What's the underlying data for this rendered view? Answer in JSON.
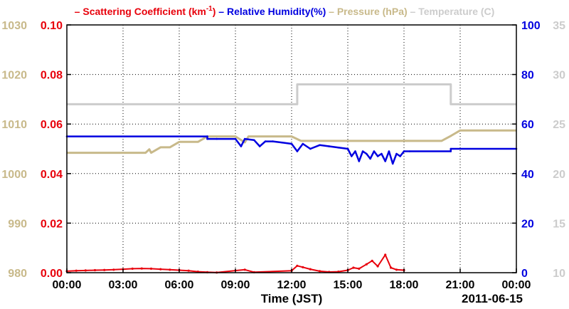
{
  "chart_data": {
    "type": "line",
    "legend_position": "top",
    "date_label": "2011-06-15",
    "xlabel": "Time (JST)",
    "x_ticks": [
      "00:00",
      "03:00",
      "06:00",
      "09:00",
      "12:00",
      "15:00",
      "18:00",
      "21:00",
      "00:00"
    ],
    "x_range": [
      0,
      24
    ],
    "grid": true,
    "colors": {
      "scattering": "#e8000b",
      "humidity": "#0000e0",
      "pressure": "#c8b98a",
      "temperature": "#cccccc"
    },
    "axes": {
      "pressure": {
        "range": [
          980,
          1030
        ],
        "ticks": [
          "980",
          "990",
          "1000",
          "1010",
          "1020",
          "1030"
        ],
        "side": "left-outer"
      },
      "scattering": {
        "range": [
          0,
          0.1
        ],
        "ticks": [
          "0.00",
          "0.02",
          "0.04",
          "0.06",
          "0.08",
          "0.10"
        ],
        "side": "left-inner"
      },
      "humidity": {
        "range": [
          0,
          100
        ],
        "ticks": [
          "0",
          "20",
          "40",
          "60",
          "80",
          "100"
        ],
        "side": "right-inner"
      },
      "temperature": {
        "range": [
          10,
          35
        ],
        "ticks": [
          "10",
          "15",
          "20",
          "25",
          "30",
          "35"
        ],
        "side": "right-outer"
      }
    },
    "series": [
      {
        "name": "Scattering Coefficient (km-1)",
        "legend_main": "Scattering Coefficient (km",
        "legend_sup": "-1",
        "legend_tail": ")",
        "axis": "scattering",
        "x": [
          0,
          0.5,
          1,
          1.5,
          2,
          2.5,
          3,
          3.5,
          4,
          4.5,
          5,
          5.5,
          6,
          6.5,
          7,
          7.5,
          8,
          9.5,
          10,
          12,
          12.3,
          12.6,
          13,
          13.5,
          14,
          14.5,
          15,
          15.3,
          15.6,
          16,
          16.3,
          16.6,
          17,
          17.3,
          17.6,
          18
        ],
        "y": [
          0.0006,
          0.0008,
          0.0009,
          0.001,
          0.0011,
          0.0012,
          0.0014,
          0.0016,
          0.0017,
          0.0016,
          0.0014,
          0.0012,
          0.001,
          0.0008,
          0.0004,
          0.0002,
          0.0001,
          0.0012,
          0.0002,
          0.0008,
          0.0028,
          0.0022,
          0.0014,
          0.0006,
          0.0003,
          0.0004,
          0.001,
          0.002,
          0.0016,
          0.0034,
          0.0048,
          0.0026,
          0.0072,
          0.002,
          0.0012,
          0.001
        ]
      },
      {
        "name": "Relative Humidity(%)",
        "axis": "humidity",
        "x": [
          0,
          7.5,
          7.5,
          8,
          9,
          9.3,
          9.5,
          10,
          10.3,
          10.6,
          11,
          11.5,
          12,
          12.3,
          12.6,
          13,
          13.5,
          14,
          14.5,
          15,
          15.2,
          15.4,
          15.6,
          15.8,
          16,
          16.2,
          16.4,
          16.6,
          16.8,
          17,
          17.2,
          17.4,
          17.6,
          17.8,
          18,
          18.3,
          20.5,
          20.5,
          24
        ],
        "y": [
          55,
          55,
          54,
          54,
          54,
          51,
          54,
          53.5,
          51,
          53,
          53,
          52.5,
          52,
          49,
          52,
          50,
          51.5,
          51,
          50.5,
          50,
          47,
          49,
          45,
          49,
          48,
          46,
          49,
          47,
          48,
          45,
          49,
          44,
          48,
          47,
          49,
          49,
          49,
          50,
          50
        ]
      },
      {
        "name": "Pressure (hPa)",
        "axis": "pressure",
        "x": [
          0,
          4.2,
          4.4,
          4.5,
          5,
          5.5,
          6,
          7,
          7.5,
          9,
          9.5,
          9.7,
          10,
          12,
          12.5,
          15,
          16,
          18,
          18.5,
          19,
          20,
          20.5,
          21,
          24
        ],
        "y": [
          1004.2,
          1004.2,
          1004.9,
          1004.2,
          1005.3,
          1005.3,
          1006.4,
          1006.4,
          1007.5,
          1007.5,
          1006.3,
          1007.5,
          1007.5,
          1007.5,
          1006.6,
          1006.6,
          1006.6,
          1006.6,
          1006.6,
          1006.6,
          1006.6,
          1007.6,
          1008.7,
          1008.7
        ]
      },
      {
        "name": "Temperature (C)",
        "axis": "temperature",
        "x": [
          0,
          12.3,
          12.3,
          20.5,
          20.5,
          24
        ],
        "y": [
          27,
          27,
          29,
          29,
          27,
          27
        ]
      }
    ]
  }
}
